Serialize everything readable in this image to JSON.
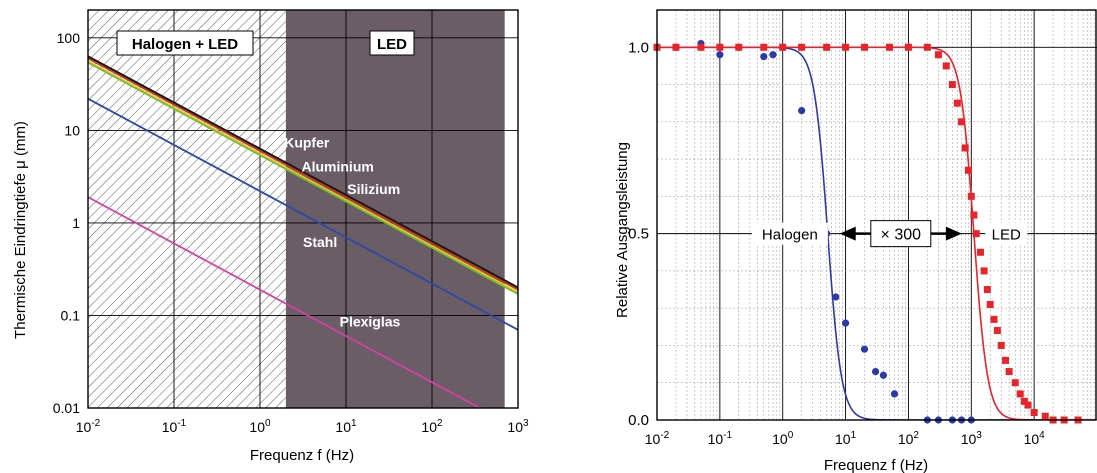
{
  "colors": {
    "hatch_region": "#ffffff",
    "led_region": "#6b5d66",
    "copper": "#1a1a1a",
    "aluminium": "#c0392b",
    "silicon": "#f0c419",
    "silicon2": "#6fbf3a",
    "steel": "#2b4aa8",
    "plexiglas": "#d63fa8",
    "halogen": "#2b3aa8",
    "led": "#e8232a"
  },
  "chart_data": [
    {
      "type": "line",
      "xscale": "log",
      "yscale": "log",
      "xlabel": "Frequenz f (Hz)",
      "ylabel": "Thermische Eindringtiefe μ (mm)",
      "xlim": [
        0.01,
        1000
      ],
      "ylim": [
        0.01,
        200
      ],
      "x_ticks": [
        {
          "value": 0.01,
          "base": "10",
          "exp": "-2"
        },
        {
          "value": 0.1,
          "base": "10",
          "exp": "-1"
        },
        {
          "value": 1,
          "base": "10",
          "exp": "0"
        },
        {
          "value": 10,
          "base": "10",
          "exp": "1"
        },
        {
          "value": 100,
          "base": "10",
          "exp": "2"
        },
        {
          "value": 1000,
          "base": "10",
          "exp": "3"
        }
      ],
      "y_ticks": [
        {
          "value": 0.01,
          "label": "0.01"
        },
        {
          "value": 0.1,
          "label": "0.1"
        },
        {
          "value": 1,
          "label": "1"
        },
        {
          "value": 10,
          "label": "10"
        },
        {
          "value": 100,
          "label": "100"
        }
      ],
      "regions": [
        {
          "label": "Halogen + LED",
          "x_range": [
            0.01,
            2
          ],
          "style": "hatched"
        },
        {
          "label": "LED",
          "x_range": [
            2,
            700
          ],
          "style": "dark"
        }
      ],
      "series": [
        {
          "name": "Kupfer",
          "color_key": "copper",
          "x": [
            0.01,
            1000
          ],
          "y": [
            63,
            0.2
          ]
        },
        {
          "name": "Aluminium",
          "color_key": "aluminium",
          "x": [
            0.01,
            1000
          ],
          "y": [
            60,
            0.19
          ]
        },
        {
          "name": "Silizium",
          "color_key": "silicon",
          "x": [
            0.01,
            1000
          ],
          "y": [
            56,
            0.178
          ]
        },
        {
          "name": "",
          "color_key": "silicon2",
          "x": [
            0.01,
            1000
          ],
          "y": [
            54,
            0.17
          ]
        },
        {
          "name": "Stahl",
          "color_key": "steel",
          "x": [
            0.01,
            1000
          ],
          "y": [
            22,
            0.07
          ]
        },
        {
          "name": "Plexiglas",
          "color_key": "plexiglas",
          "x": [
            0.01,
            1000
          ],
          "y": [
            1.9,
            0.006
          ]
        }
      ],
      "annotations": [
        {
          "text": "Kupfer",
          "x": 3.5,
          "y": 6.5
        },
        {
          "text": "Aluminium",
          "x": 8.0,
          "y": 3.6
        },
        {
          "text": "Silizium",
          "x": 21.0,
          "y": 2.05
        },
        {
          "text": "Stahl",
          "x": 5.0,
          "y": 0.55
        },
        {
          "text": "Plexiglas",
          "x": 19.0,
          "y": 0.076
        }
      ],
      "grid": true
    },
    {
      "type": "line",
      "xscale": "log",
      "xlabel": "Frequenz f (Hz)",
      "ylabel": "Relative Ausgangsleistung",
      "xlim": [
        0.01,
        100000
      ],
      "ylim": [
        0.0,
        1.1
      ],
      "x_ticks": [
        {
          "value": 0.01,
          "base": "10",
          "exp": "-2"
        },
        {
          "value": 0.1,
          "base": "10",
          "exp": "-1"
        },
        {
          "value": 1,
          "base": "10",
          "exp": "0"
        },
        {
          "value": 10,
          "base": "10",
          "exp": "1"
        },
        {
          "value": 100,
          "base": "10",
          "exp": "2"
        },
        {
          "value": 1000,
          "base": "10",
          "exp": "3"
        },
        {
          "value": 10000,
          "base": "10",
          "exp": "4"
        }
      ],
      "y_ticks": [
        {
          "value": 0.0,
          "label": "0.0"
        },
        {
          "value": 0.5,
          "label": "0.5"
        },
        {
          "value": 1.0,
          "label": "1.0"
        }
      ],
      "series": [
        {
          "name": "Halogen",
          "color_key": "halogen",
          "marker": "circle",
          "fit_fc": 5.2,
          "fit_order": 2,
          "points": [
            [
              0.01,
              1.0
            ],
            [
              0.02,
              1.0
            ],
            [
              0.05,
              1.01
            ],
            [
              0.1,
              0.98
            ],
            [
              0.2,
              1.0
            ],
            [
              0.5,
              0.975
            ],
            [
              0.7,
              0.98
            ],
            [
              1.0,
              1.0
            ],
            [
              2.0,
              0.83
            ],
            [
              5.0,
              0.5
            ],
            [
              7.0,
              0.33
            ],
            [
              10.0,
              0.26
            ],
            [
              20.0,
              0.19
            ],
            [
              30.0,
              0.13
            ],
            [
              40.0,
              0.12
            ],
            [
              60.0,
              0.07
            ],
            [
              200.0,
              0.0
            ],
            [
              300.0,
              0.0
            ],
            [
              500.0,
              0.0
            ],
            [
              700.0,
              0.0
            ],
            [
              1000.0,
              0.0
            ]
          ]
        },
        {
          "name": "LED",
          "color_key": "led",
          "marker": "square",
          "fit_fc": 1100,
          "fit_order": 2,
          "points": [
            [
              0.01,
              1.0
            ],
            [
              0.02,
              1.0
            ],
            [
              0.05,
              1.0
            ],
            [
              0.1,
              1.0
            ],
            [
              0.2,
              1.0
            ],
            [
              0.5,
              1.0
            ],
            [
              1.0,
              1.0
            ],
            [
              2.0,
              1.0
            ],
            [
              5.0,
              1.0
            ],
            [
              10.0,
              1.0
            ],
            [
              20.0,
              1.0
            ],
            [
              50.0,
              1.0
            ],
            [
              100.0,
              1.0
            ],
            [
              200.0,
              1.0
            ],
            [
              300.0,
              0.98
            ],
            [
              400.0,
              0.95
            ],
            [
              500.0,
              0.9
            ],
            [
              600.0,
              0.85
            ],
            [
              700.0,
              0.8
            ],
            [
              800.0,
              0.73
            ],
            [
              900.0,
              0.67
            ],
            [
              1000.0,
              0.6
            ],
            [
              1100.0,
              0.55
            ],
            [
              1200.0,
              0.5
            ],
            [
              1400.0,
              0.45
            ],
            [
              1600.0,
              0.4
            ],
            [
              1800.0,
              0.35
            ],
            [
              2000.0,
              0.31
            ],
            [
              2300.0,
              0.27
            ],
            [
              2600.0,
              0.24
            ],
            [
              3000.0,
              0.2
            ],
            [
              3500.0,
              0.16
            ],
            [
              4000.0,
              0.13
            ],
            [
              5000.0,
              0.1
            ],
            [
              6000.0,
              0.07
            ],
            [
              7000.0,
              0.05
            ],
            [
              8000.0,
              0.04
            ],
            [
              10000.0,
              0.02
            ],
            [
              15000.0,
              0.01
            ],
            [
              20000.0,
              0.0
            ],
            [
              30000.0,
              0.0
            ],
            [
              50000.0,
              0.0
            ]
          ]
        }
      ],
      "annotation": {
        "label": "× 300",
        "y": 0.5,
        "x_from": 5.2,
        "x_to": 1100
      },
      "grid": true
    }
  ]
}
